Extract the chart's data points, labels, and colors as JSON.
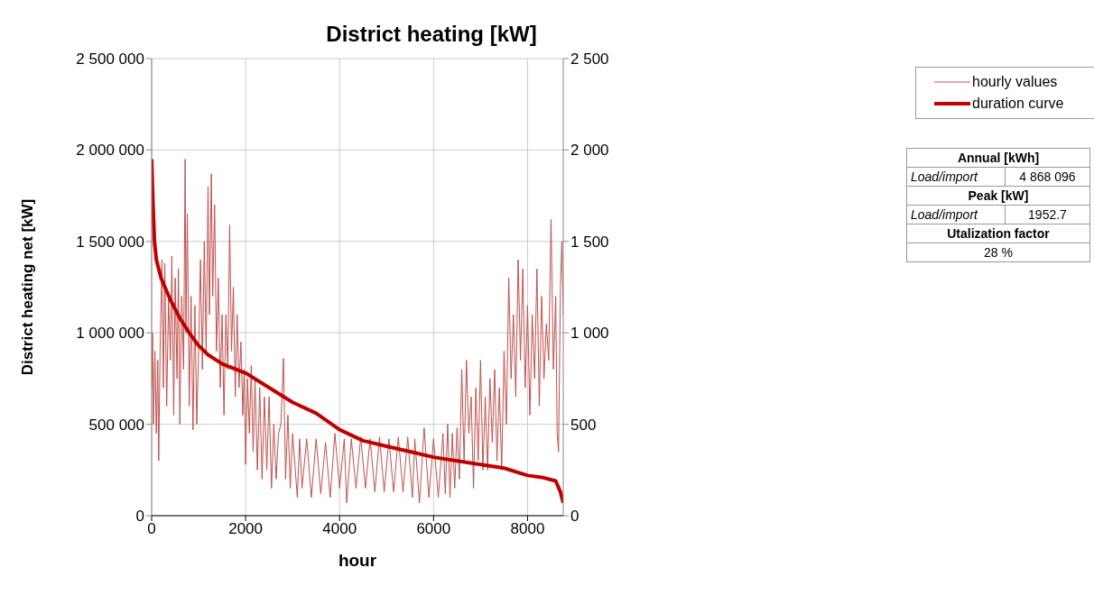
{
  "chart_data": {
    "type": "line",
    "title": "District heating [kW]",
    "xlabel": "hour",
    "ylabel": "District heating net [kW]",
    "xlim": [
      0,
      8760
    ],
    "xticks": [
      0,
      2000,
      4000,
      6000,
      8000
    ],
    "ylim": [
      0,
      2500000
    ],
    "yticks": [
      {
        "value": 0,
        "label": "0"
      },
      {
        "value": 500000,
        "label": "500 000"
      },
      {
        "value": 1000000,
        "label": "1 000 000"
      },
      {
        "value": 1500000,
        "label": "1 500 000"
      },
      {
        "value": 2000000,
        "label": "2 000 000"
      },
      {
        "value": 2500000,
        "label": "2 500 000"
      }
    ],
    "y2lim": [
      0,
      2500
    ],
    "y2ticks": [
      0,
      {
        "value": 500,
        "label": "500"
      },
      {
        "value": 1000,
        "label": "1 000"
      },
      {
        "value": 1500,
        "label": "1 500"
      },
      {
        "value": 2000,
        "label": "2 000"
      },
      {
        "value": 2500,
        "label": "2 500"
      }
    ],
    "grid": true,
    "legend": "top right",
    "marker": "none",
    "series": [
      {
        "name": "hourly values",
        "color": "#c0504d",
        "x": [
          0,
          20,
          40,
          70,
          100,
          130,
          150,
          180,
          220,
          250,
          280,
          320,
          360,
          400,
          430,
          470,
          500,
          540,
          570,
          600,
          640,
          680,
          713,
          730,
          760,
          800,
          840,
          880,
          920,
          960,
          1000,
          1040,
          1080,
          1120,
          1160,
          1200,
          1230,
          1270,
          1300,
          1340,
          1380,
          1420,
          1460,
          1500,
          1540,
          1580,
          1620,
          1660,
          1700,
          1740,
          1780,
          1820,
          1860,
          1900,
          1940,
          1970,
          2000,
          2040,
          2080,
          2120,
          2160,
          2200,
          2250,
          2300,
          2350,
          2400,
          2450,
          2500,
          2550,
          2600,
          2650,
          2700,
          2750,
          2806,
          2850,
          2900,
          2950,
          3000,
          3100,
          3150,
          3200,
          3300,
          3400,
          3500,
          3600,
          3700,
          3800,
          3900,
          4000,
          4100,
          4150,
          4250,
          4350,
          4450,
          4550,
          4650,
          4750,
          4850,
          4950,
          5050,
          5150,
          5250,
          5350,
          5450,
          5550,
          5600,
          5700,
          5800,
          5900,
          6000,
          6100,
          6200,
          6250,
          6300,
          6350,
          6400,
          6450,
          6500,
          6550,
          6600,
          6650,
          6700,
          6750,
          6800,
          6850,
          6900,
          6950,
          7000,
          7050,
          7100,
          7150,
          7200,
          7250,
          7300,
          7350,
          7400,
          7450,
          7500,
          7550,
          7600,
          7650,
          7700,
          7750,
          7800,
          7850,
          7900,
          7950,
          8000,
          8050,
          8100,
          8150,
          8200,
          8250,
          8300,
          8350,
          8400,
          8450,
          8500,
          8550,
          8600,
          8630,
          8660,
          8700,
          8730,
          8760
        ],
        "values": [
          700000,
          1000000,
          500000,
          900000,
          450000,
          850000,
          300000,
          900000,
          1400000,
          700000,
          1380000,
          600000,
          1200000,
          850000,
          1420000,
          550000,
          1300000,
          750000,
          1350000,
          500000,
          1200000,
          800000,
          1950000,
          1000000,
          1650000,
          600000,
          1200000,
          470000,
          1150000,
          500000,
          900000,
          1400000,
          800000,
          1500000,
          900000,
          1800000,
          1100000,
          1870000,
          1200000,
          1700000,
          900000,
          1300000,
          700000,
          1100000,
          550000,
          1100000,
          800000,
          1590000,
          900000,
          1250000,
          650000,
          1100000,
          700000,
          950000,
          550000,
          800000,
          280000,
          750000,
          450000,
          820000,
          350000,
          750000,
          250000,
          700000,
          200000,
          650000,
          250000,
          650000,
          150000,
          500000,
          200000,
          450000,
          500000,
          860000,
          200000,
          550000,
          150000,
          450000,
          100000,
          420000,
          150000,
          420000,
          100000,
          420000,
          120000,
          400000,
          100000,
          450000,
          150000,
          420000,
          70000,
          420000,
          150000,
          430000,
          150000,
          420000,
          130000,
          430000,
          130000,
          420000,
          130000,
          430000,
          130000,
          430000,
          100000,
          420000,
          70000,
          480000,
          100000,
          420000,
          100000,
          450000,
          120000,
          500000,
          100000,
          450000,
          150000,
          480000,
          200000,
          800000,
          300000,
          850000,
          450000,
          650000,
          150000,
          700000,
          300000,
          850000,
          250000,
          650000,
          250000,
          750000,
          400000,
          800000,
          300000,
          700000,
          250000,
          900000,
          500000,
          1300000,
          750000,
          1100000,
          650000,
          1400000,
          850000,
          1350000,
          700000,
          1150000,
          550000,
          1100000,
          750000,
          1350000,
          600000,
          1200000,
          750000,
          1050000,
          850000,
          1620000,
          800000,
          1200000,
          450000,
          350000,
          1250000,
          1500000,
          1100000
        ]
      },
      {
        "name": "duration curve",
        "color": "#c00000",
        "x": [
          0,
          30,
          60,
          100,
          200,
          400,
          600,
          800,
          1000,
          1200,
          1500,
          2000,
          2500,
          3000,
          3500,
          4000,
          4500,
          5000,
          5500,
          6000,
          6500,
          7000,
          7500,
          8000,
          8300,
          8600,
          8700,
          8760
        ],
        "values": [
          1950000,
          1700000,
          1500000,
          1400000,
          1300000,
          1180000,
          1080000,
          1000000,
          930000,
          880000,
          830000,
          780000,
          700000,
          620000,
          560000,
          470000,
          410000,
          380000,
          350000,
          320000,
          300000,
          280000,
          260000,
          220000,
          210000,
          190000,
          130000,
          70000
        ]
      }
    ],
    "annotations": [
      "Annual [kWh]",
      "Load/import",
      "4 868 096",
      "Peak [kW]",
      "Load/import",
      "1952.7",
      "Utalization factor",
      "28 %"
    ]
  }
}
